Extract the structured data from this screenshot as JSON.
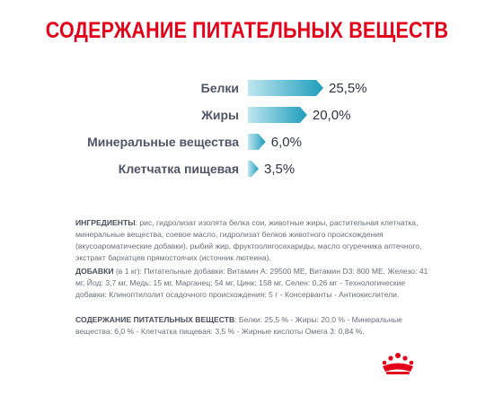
{
  "title": "СОДЕРЖАНИЕ ПИТАТЕЛЬНЫХ ВЕЩЕСТВ",
  "chart_data": {
    "type": "bar",
    "orientation": "horizontal",
    "categories": [
      "Белки",
      "Жиры",
      "Минеральные вещества",
      "Клетчатка пищевая"
    ],
    "values": [
      25.5,
      20.0,
      6.0,
      3.5
    ],
    "value_labels": [
      "25,5%",
      "20,0%",
      "6,0%",
      "3,5%"
    ],
    "title": "",
    "xlabel": "",
    "ylabel": "",
    "xlim": [
      0,
      25.5
    ],
    "grid": false,
    "colors": {
      "bar_start": "#bfe6ef",
      "bar_end": "#1d9dbd"
    }
  },
  "ingredients": {
    "heading": "ИНГРЕДИЕНТЫ",
    "text": ": рис, гидролизат изолята белка сои, животные жиры, растительная клетчатка, минеральные вещества, соевое масло, гидролизат белков животного происхождения (вкусоароматические добавки), рыбий жир, фруктоолигосахариды, масло огуречника аптечного, экстракт бархатцев прямостоячих (источник лютеина)."
  },
  "additives": {
    "heading": "ДОБАВКИ",
    "text": " (в 1 кг): Питательные добавки: Витамин A: 29500 МЕ, Витамин D3: 800 МЕ, Железо: 41 мг, Йод: 3,7 мг, Медь: 15 мг, Марганец: 54 мг, Цинк: 158 мг, Селен: 0,26 мг - Технологические добавки: Клиноптилолит осадочного происхождения: 5 г - Консерванты - Антиокислители."
  },
  "nutrients": {
    "heading": "СОДЕРЖАНИЕ ПИТАТЕЛЬНЫХ ВЕЩЕСТВ",
    "text": ": Белки: 25,5 % - Жиры: 20,0 % - Минеральные вещества: 6,0 % - Клетчатка пищевая: 3,5 % - Жирные кислоты Омега 3: 0,84 %."
  },
  "logo": {
    "icon": "royal-crown-icon",
    "color": "#e2001a"
  }
}
